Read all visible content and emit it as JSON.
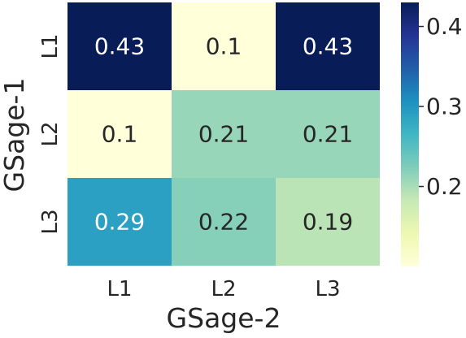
{
  "chart_data": {
    "type": "heatmap",
    "xlabel": "GSage-2",
    "ylabel": "GSage-1",
    "x_categories": [
      "L1",
      "L2",
      "L3"
    ],
    "y_categories": [
      "L1",
      "L2",
      "L3"
    ],
    "values": [
      [
        0.43,
        0.1,
        0.43
      ],
      [
        0.1,
        0.21,
        0.21
      ],
      [
        0.29,
        0.22,
        0.19
      ]
    ],
    "cell_labels": [
      [
        "0.43",
        "0.1",
        "0.43"
      ],
      [
        "0.1",
        "0.21",
        "0.21"
      ],
      [
        "0.29",
        "0.22",
        "0.19"
      ]
    ],
    "colormap": "YlGnBu",
    "vmin": 0.1,
    "vmax": 0.43,
    "colorbar": {
      "ticks": [
        0.2,
        0.3,
        0.4
      ],
      "tick_labels": [
        "0.2",
        "0.3",
        "0.4"
      ]
    },
    "colors": {
      "high": "#081d58",
      "low": "#ffffd9",
      "text_dark": "#262626",
      "text_light": "#ffffff"
    }
  }
}
